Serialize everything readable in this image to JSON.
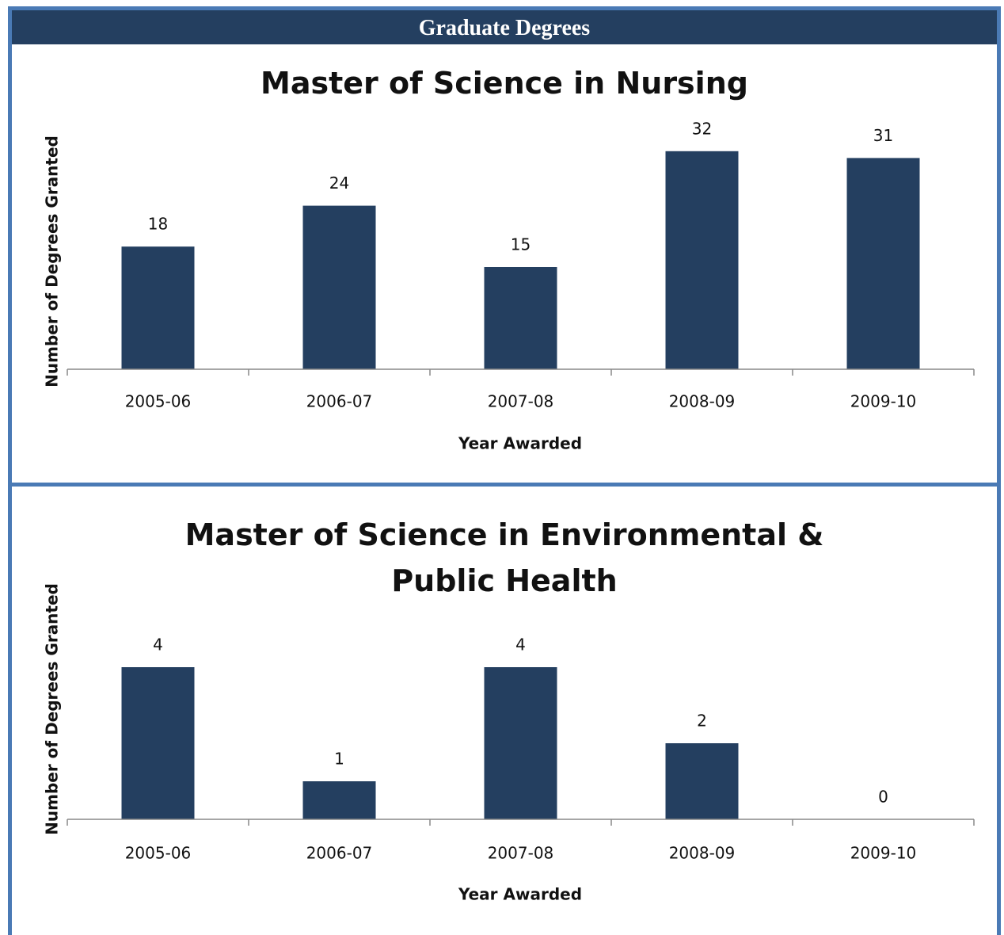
{
  "header": {
    "title": "Graduate Degrees"
  },
  "chart_data": [
    {
      "type": "bar",
      "title": "Master of Science in Nursing",
      "categories": [
        "2005-06",
        "2006-07",
        "2007-08",
        "2008-09",
        "2009-10"
      ],
      "values": [
        18,
        24,
        15,
        32,
        31
      ],
      "color": "#243f60",
      "xlabel": "Year Awarded",
      "ylabel": "Number of Degrees Granted",
      "ylim": [
        0,
        35
      ]
    },
    {
      "type": "bar",
      "title": "Master of Science in Environmental & Public Health",
      "categories": [
        "2005-06",
        "2006-07",
        "2007-08",
        "2008-09",
        "2009-10"
      ],
      "values": [
        4,
        1,
        4,
        2,
        0
      ],
      "color": "#243f60",
      "xlabel": "Year Awarded",
      "ylabel": "Number of Degrees Granted",
      "ylim": [
        0,
        4.5
      ]
    }
  ]
}
